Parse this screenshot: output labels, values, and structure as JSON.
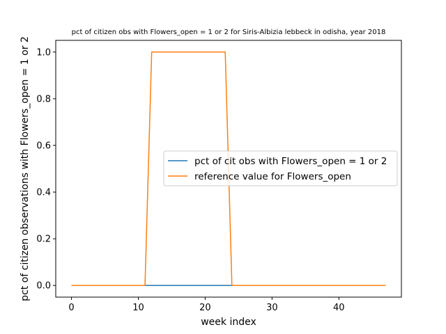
{
  "chart_data": {
    "type": "line",
    "title": "pct of citizen obs with Flowers_open = 1 or 2 for Siris-Albizia lebbeck in odisha, year 2018",
    "xlabel": "week index",
    "ylabel": "pct of citizen observations with Flowers_open = 1 or 2",
    "xlim": [
      -2.35,
      49.35
    ],
    "ylim": [
      -0.05,
      1.05
    ],
    "xticks": [
      0,
      10,
      20,
      30,
      40
    ],
    "xtick_labels": [
      "0",
      "10",
      "20",
      "30",
      "40"
    ],
    "yticks": [
      0.0,
      0.2,
      0.4,
      0.6,
      0.8,
      1.0
    ],
    "ytick_labels": [
      "0.0",
      "0.2",
      "0.4",
      "0.6",
      "0.8",
      "1.0"
    ],
    "grid": false,
    "legend_position": "center-right",
    "x": [
      0,
      1,
      2,
      3,
      4,
      5,
      6,
      7,
      8,
      9,
      10,
      11,
      12,
      13,
      14,
      15,
      16,
      17,
      18,
      19,
      20,
      21,
      22,
      23,
      24,
      25,
      26,
      27,
      28,
      29,
      30,
      31,
      32,
      33,
      34,
      35,
      36,
      37,
      38,
      39,
      40,
      41,
      42,
      43,
      44,
      45,
      46,
      47
    ],
    "series": [
      {
        "name": "pct of cit obs with Flowers_open = 1 or 2",
        "color": "#1f77b4",
        "values": [
          0,
          0,
          0,
          0,
          0,
          0,
          0,
          0,
          0,
          0,
          0,
          0,
          0,
          0,
          0,
          0,
          0,
          0,
          0,
          0,
          0,
          0,
          0,
          0,
          0,
          0,
          0,
          0,
          0,
          0,
          0,
          0,
          0,
          0,
          0,
          0,
          0,
          0,
          0,
          0,
          0,
          0,
          0,
          0,
          0,
          0,
          0,
          0
        ]
      },
      {
        "name": "reference value for Flowers_open",
        "color": "#ff7f0e",
        "values": [
          0,
          0,
          0,
          0,
          0,
          0,
          0,
          0,
          0,
          0,
          0,
          0,
          1,
          1,
          1,
          1,
          1,
          1,
          1,
          1,
          1,
          1,
          1,
          1,
          0,
          0,
          0,
          0,
          0,
          0,
          0,
          0,
          0,
          0,
          0,
          0,
          0,
          0,
          0,
          0,
          0,
          0,
          0,
          0,
          0,
          0,
          0,
          0
        ]
      }
    ]
  }
}
